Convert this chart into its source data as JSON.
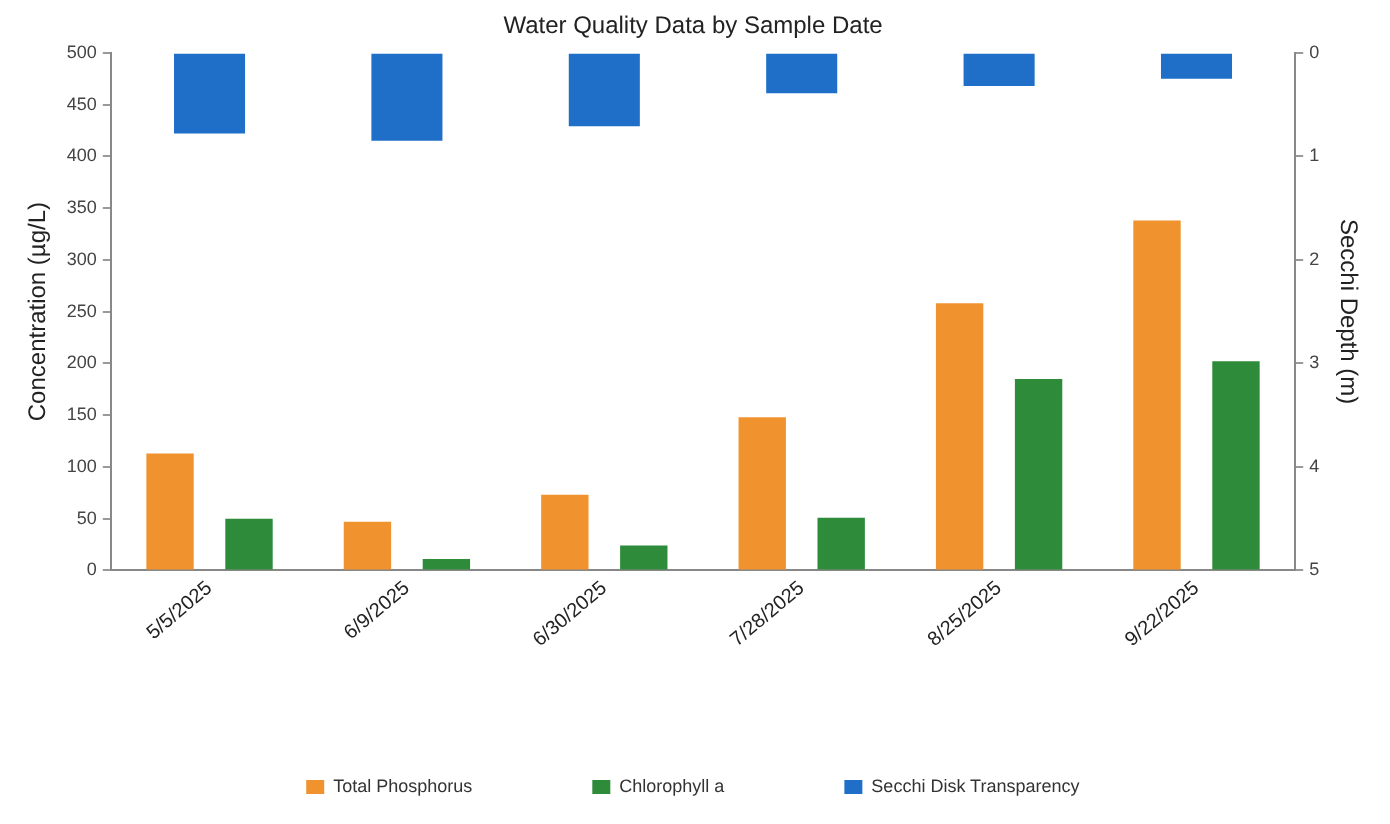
{
  "chart_data": {
    "type": "bar",
    "title": "Water Quality Data by Sample Date",
    "ylabel": "Concentration (µg/L)",
    "y2label": "Secchi Depth (m)",
    "categories": [
      "5/5/2025",
      "6/9/2025",
      "6/30/2025",
      "7/28/2025",
      "8/25/2025",
      "9/22/2025"
    ],
    "series": [
      {
        "name": "Total Phosphorus",
        "color": "#f0922e",
        "values": [
          113,
          47,
          73,
          148,
          258,
          338
        ]
      },
      {
        "name": "Chlorophyll a",
        "color": "#2e8b3a",
        "values": [
          50,
          11,
          24,
          51,
          185,
          202
        ]
      },
      {
        "name": "Secchi Disk Transparency",
        "color": "#1f6fc8",
        "axis": "y2",
        "values": [
          0.78,
          0.85,
          0.71,
          0.39,
          0.32,
          0.25
        ]
      }
    ],
    "ylim": [
      0,
      500
    ],
    "yticks": [
      0,
      50,
      100,
      150,
      200,
      250,
      300,
      350,
      400,
      450,
      500
    ],
    "y2lim": [
      5,
      0
    ],
    "y2ticks": [
      0,
      1,
      2,
      3,
      4,
      5
    ],
    "grid": false,
    "legend": "bottom"
  }
}
